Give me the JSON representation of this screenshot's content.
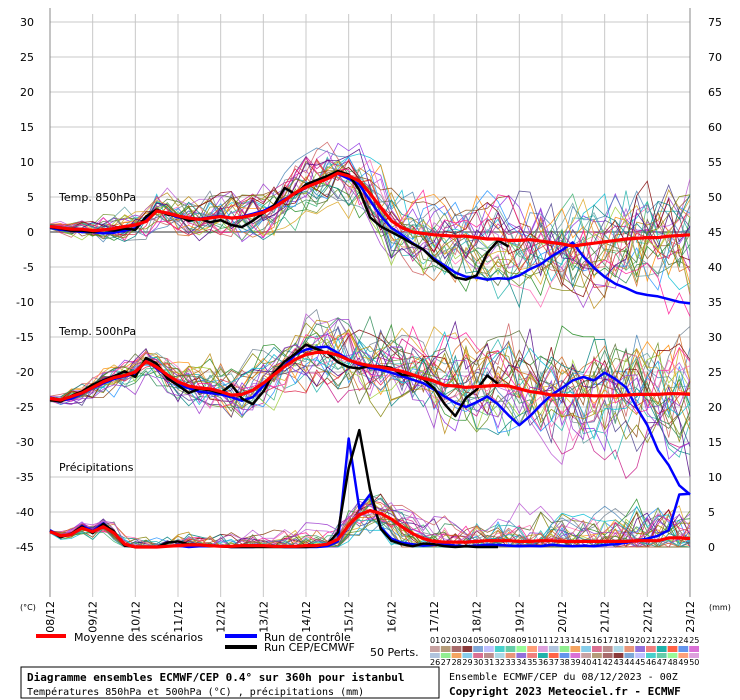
{
  "chart_data": {
    "type": "line",
    "x_tick_labels": [
      "08/12",
      "09/12",
      "10/12",
      "11/12",
      "12/12",
      "13/12",
      "14/12",
      "15/12",
      "16/12",
      "17/12",
      "18/12",
      "19/12",
      "20/12",
      "21/12",
      "22/12",
      "23/12"
    ],
    "y_left_ticks": [
      30,
      25,
      20,
      15,
      10,
      5,
      0,
      -5,
      -10,
      -15,
      -20,
      -25,
      -30,
      -35,
      -40,
      -45
    ],
    "y_right_ticks": [
      75,
      70,
      65,
      60,
      55,
      50,
      45,
      40,
      35,
      30,
      25,
      20,
      15,
      10,
      5,
      0
    ],
    "y_left_unit": "(°C)",
    "y_right_unit": "(mm)",
    "ylim_left": [
      -45,
      30
    ],
    "ylim_right": [
      0,
      75
    ],
    "panel_labels": {
      "t850": "Temp. 850hPa",
      "t500": "Temp. 500hPa",
      "precip": "Précipitations"
    },
    "x_step_hours": 6,
    "t850_mean": [
      0.8,
      0.6,
      0.4,
      0.4,
      0.2,
      0.3,
      0.5,
      0.8,
      1.0,
      1.5,
      3.0,
      2.7,
      2.3,
      2.0,
      1.8,
      2.0,
      2.2,
      2.0,
      2.1,
      2.4,
      2.8,
      3.5,
      4.5,
      5.6,
      6.4,
      7.0,
      7.6,
      8.4,
      8.0,
      7.3,
      5.5,
      3.5,
      1.6,
      0.6,
      0.0,
      -0.2,
      -0.4,
      -0.5,
      -0.6,
      -0.6,
      -0.8,
      -1.0,
      -1.0,
      -1.2,
      -1.2,
      -1.1,
      -1.3,
      -1.5,
      -1.7,
      -2.0,
      -1.8,
      -1.6,
      -1.4,
      -1.2,
      -1.0,
      -0.9,
      -0.8,
      -0.8,
      -0.6,
      -0.5,
      -0.4
    ],
    "t850_control": [
      0.6,
      0.3,
      0.2,
      0.0,
      0.0,
      -0.2,
      -0.1,
      0.2,
      0.5,
      1.8,
      3.0,
      2.6,
      2.1,
      2.0,
      1.9,
      2.1,
      2.3,
      2.0,
      2.2,
      2.6,
      3.0,
      3.8,
      4.7,
      5.5,
      6.3,
      7.2,
      7.8,
      8.3,
      7.6,
      6.8,
      4.5,
      2.3,
      0.6,
      -0.4,
      -1.6,
      -2.5,
      -3.8,
      -4.8,
      -5.8,
      -6.4,
      -6.5,
      -6.8,
      -6.6,
      -6.7,
      -6.2,
      -5.3,
      -4.6,
      -3.5,
      -2.6,
      -1.5,
      -3.5,
      -5.1,
      -6.4,
      -7.4,
      -8.0,
      -8.7,
      -9.0,
      -9.2,
      -9.6,
      -10.0,
      -10.2
    ],
    "t850_cep": [
      0.7,
      0.5,
      0.2,
      0.2,
      0.0,
      0.3,
      0.2,
      0.5,
      0.3,
      2.2,
      3.2,
      2.5,
      2.3,
      1.6,
      1.9,
      1.4,
      1.7,
      1.0,
      0.7,
      1.6,
      2.7,
      3.8,
      6.3,
      5.4,
      6.8,
      7.4,
      8.0,
      8.7,
      8.2,
      6.0,
      2.1,
      0.8,
      0.0,
      -0.8,
      -1.7,
      -2.5,
      -4.0,
      -5.1,
      -6.5,
      -6.8,
      -6.2,
      -3.0,
      -1.2,
      -2.1
    ],
    "t500_mean": [
      -23.8,
      -24.0,
      -23.5,
      -23.0,
      -22.2,
      -21.4,
      -20.8,
      -20.5,
      -20.0,
      -18.5,
      -19.3,
      -20.4,
      -21.4,
      -22.0,
      -22.3,
      -22.4,
      -22.8,
      -23.3,
      -23.2,
      -22.6,
      -21.6,
      -20.4,
      -19.2,
      -18.2,
      -17.5,
      -17.2,
      -17.2,
      -17.6,
      -18.3,
      -18.8,
      -19.1,
      -19.3,
      -19.6,
      -19.9,
      -20.4,
      -20.9,
      -21.3,
      -21.9,
      -22.0,
      -22.2,
      -22.1,
      -22.0,
      -21.9,
      -22.0,
      -22.4,
      -22.8,
      -23.0,
      -23.3,
      -23.3,
      -23.4,
      -23.3,
      -23.4,
      -23.4,
      -23.4,
      -23.3,
      -23.2,
      -23.2,
      -23.2,
      -23.1,
      -23.1,
      -23.2
    ],
    "t500_control": [
      -24.0,
      -24.1,
      -23.8,
      -23.1,
      -22.3,
      -21.6,
      -21.0,
      -20.6,
      -20.2,
      -18.4,
      -19.5,
      -20.6,
      -21.8,
      -22.3,
      -22.8,
      -23.0,
      -23.2,
      -23.6,
      -24.1,
      -23.6,
      -22.0,
      -20.4,
      -19.1,
      -17.5,
      -16.8,
      -16.5,
      -16.4,
      -17.3,
      -18.2,
      -19.0,
      -19.4,
      -19.7,
      -20.1,
      -20.6,
      -21.1,
      -21.6,
      -22.5,
      -23.5,
      -24.4,
      -25.0,
      -24.3,
      -23.5,
      -24.6,
      -26.2,
      -27.6,
      -26.3,
      -24.7,
      -23.3,
      -22.3,
      -21.2,
      -20.7,
      -21.2,
      -20.1,
      -21.0,
      -22.2,
      -25.1,
      -27.6,
      -31.2,
      -33.3,
      -36.2,
      -37.5
    ],
    "t500_cep": [
      -24.0,
      -24.2,
      -23.4,
      -22.8,
      -21.8,
      -21.2,
      -20.6,
      -19.9,
      -20.7,
      -18.0,
      -18.8,
      -20.9,
      -21.9,
      -23.0,
      -22.4,
      -22.6,
      -23.0,
      -21.8,
      -23.8,
      -24.6,
      -22.8,
      -20.1,
      -18.5,
      -17.4,
      -16.1,
      -16.7,
      -17.3,
      -18.6,
      -19.3,
      -19.5,
      -19.1,
      -19.2,
      -19.4,
      -20.4,
      -20.5,
      -21.0,
      -22.3,
      -24.6,
      -26.3,
      -23.7,
      -22.5,
      -20.5,
      -21.7
    ],
    "precip_mean": [
      2.2,
      1.6,
      1.8,
      2.7,
      2.2,
      2.9,
      2.0,
      0.4,
      0.0,
      0.0,
      0.0,
      0.1,
      0.2,
      0.3,
      0.3,
      0.2,
      0.1,
      0.1,
      0.2,
      0.2,
      0.2,
      0.1,
      0.1,
      0.1,
      0.2,
      0.2,
      0.4,
      1.1,
      3.1,
      4.6,
      5.2,
      4.8,
      4.0,
      2.9,
      1.9,
      1.2,
      0.8,
      0.7,
      0.7,
      0.7,
      0.8,
      0.9,
      0.9,
      0.9,
      0.8,
      0.8,
      0.9,
      0.9,
      0.8,
      0.8,
      0.8,
      0.8,
      0.8,
      0.8,
      0.8,
      0.9,
      0.9,
      0.9,
      1.3,
      1.3,
      1.2
    ],
    "precip_control": [
      2.4,
      1.5,
      1.8,
      3.0,
      2.3,
      3.4,
      2.0,
      0.3,
      0.0,
      0.0,
      0.0,
      0.1,
      0.2,
      0.0,
      0.1,
      0.1,
      0.1,
      0.0,
      0.0,
      0.0,
      0.1,
      0.1,
      0.0,
      0.0,
      0.0,
      0.0,
      0.1,
      0.8,
      15.5,
      5.5,
      7.5,
      2.8,
      1.2,
      0.6,
      0.4,
      0.2,
      0.3,
      0.4,
      0.2,
      0.1,
      0.2,
      0.3,
      0.3,
      0.2,
      0.1,
      0.2,
      0.1,
      0.3,
      0.2,
      0.1,
      0.2,
      0.1,
      0.3,
      0.4,
      0.6,
      0.9,
      1.2,
      1.6,
      2.4,
      7.5,
      7.6
    ],
    "precip_cep": [
      2.3,
      1.4,
      1.9,
      2.9,
      2.0,
      3.3,
      2.2,
      0.2,
      0.0,
      0.0,
      0.0,
      0.6,
      0.8,
      0.4,
      0.3,
      0.1,
      0.1,
      0.0,
      0.0,
      0.0,
      0.0,
      0.0,
      0.0,
      0.0,
      0.0,
      0.1,
      0.4,
      2.1,
      11.3,
      16.7,
      8.2,
      2.6,
      0.9,
      0.4,
      0.1,
      0.5,
      0.4,
      0.1,
      0.0,
      0.1,
      0.0,
      0.0,
      0.0
    ]
  },
  "legend": {
    "mean_label": "Moyenne des scénarios",
    "control_label": "Run de contrôle",
    "cep_label": "Run CEP/ECMWF",
    "perts_label": "50 Perts.",
    "perts_top": [
      "01",
      "02",
      "03",
      "04",
      "05",
      "06",
      "07",
      "08",
      "09",
      "10",
      "11",
      "12",
      "13",
      "14",
      "15",
      "16",
      "17",
      "18",
      "19",
      "20",
      "21",
      "22",
      "23",
      "24",
      "25"
    ],
    "perts_bottom": [
      "26",
      "27",
      "28",
      "29",
      "30",
      "31",
      "32",
      "33",
      "34",
      "35",
      "36",
      "37",
      "38",
      "39",
      "40",
      "41",
      "42",
      "43",
      "44",
      "45",
      "46",
      "47",
      "48",
      "49",
      "50"
    ]
  },
  "footer": {
    "title": "Diagramme ensembles ECMWF/CEP 0.4° sur 360h pour istanbul",
    "subtitle": "Températures 850hPa et 500hPa (°C) , précipitations (mm)",
    "run_info": "Ensemble ECMWF/CEP du 08/12/2023 - 00Z",
    "copyright": "Copyright 2023 Meteociel.fr - ECMWF"
  },
  "colors": {
    "mean": "#ff0000",
    "control": "#0000ff",
    "cep": "#000000"
  }
}
